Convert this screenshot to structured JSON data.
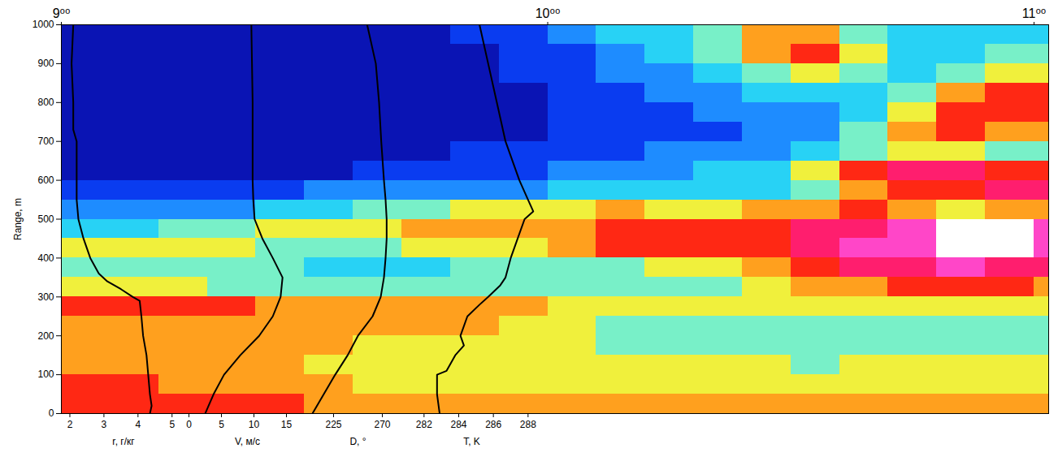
{
  "chart_data": [
    {
      "type": "heatmap",
      "xlim": [
        9,
        11.03
      ],
      "xticks": [
        {
          "value": 9,
          "label": "9⁰⁰"
        },
        {
          "value": 10,
          "label": "10⁰⁰"
        },
        {
          "value": 11,
          "label": "11⁰⁰"
        }
      ],
      "ylabel": "Range, m",
      "ylim": [
        0,
        1000
      ],
      "yticks": [
        0,
        100,
        200,
        300,
        400,
        500,
        600,
        700,
        800,
        900,
        1000
      ],
      "x_edges": [
        9,
        9.1,
        9.2,
        9.3,
        9.4,
        9.5,
        9.6,
        9.7,
        9.8,
        9.9,
        10,
        10.1,
        10.2,
        10.3,
        10.4,
        10.5,
        10.6,
        10.7,
        10.8,
        10.9,
        11,
        11.03
      ],
      "y_edges": [
        0,
        50,
        100,
        150,
        200,
        250,
        300,
        350,
        400,
        450,
        500,
        550,
        600,
        650,
        700,
        750,
        800,
        850,
        900,
        950,
        1000
      ],
      "cells": [
        [
          7,
          7,
          7,
          7,
          7,
          6,
          6,
          6,
          6,
          6,
          6,
          6,
          6,
          6,
          6,
          6,
          6,
          6,
          6,
          6,
          6
        ],
        [
          7,
          7,
          6,
          6,
          6,
          6,
          5,
          5,
          5,
          5,
          5,
          5,
          5,
          5,
          5,
          5,
          5,
          5,
          5,
          5,
          5
        ],
        [
          6,
          6,
          6,
          6,
          6,
          5,
          5,
          5,
          5,
          5,
          5,
          5,
          5,
          5,
          5,
          4,
          5,
          5,
          5,
          5,
          5
        ],
        [
          6,
          6,
          6,
          6,
          6,
          6,
          5,
          5,
          5,
          5,
          5,
          4,
          4,
          4,
          4,
          4,
          4,
          4,
          4,
          4,
          4
        ],
        [
          6,
          6,
          6,
          6,
          6,
          6,
          6,
          6,
          6,
          5,
          5,
          4,
          4,
          4,
          4,
          4,
          4,
          4,
          4,
          4,
          4
        ],
        [
          7,
          7,
          7,
          7,
          6,
          6,
          6,
          6,
          6,
          6,
          5,
          5,
          5,
          5,
          5,
          5,
          5,
          5,
          5,
          5,
          5
        ],
        [
          5,
          5,
          5,
          4,
          4,
          4,
          4,
          4,
          4,
          4,
          4,
          4,
          4,
          4,
          5,
          6,
          6,
          7,
          7,
          7,
          6
        ],
        [
          4,
          4,
          4,
          4,
          4,
          3,
          3,
          3,
          4,
          4,
          4,
          4,
          5,
          5,
          6,
          7,
          8,
          8,
          9,
          8,
          8
        ],
        [
          5,
          5,
          5,
          5,
          4,
          4,
          4,
          5,
          5,
          5,
          6,
          7,
          7,
          7,
          7,
          8,
          9,
          9,
          10,
          10,
          9
        ],
        [
          3,
          3,
          4,
          4,
          5,
          5,
          5,
          6,
          6,
          6,
          6,
          7,
          7,
          7,
          7,
          8,
          8,
          9,
          10,
          10,
          9
        ],
        [
          2,
          2,
          2,
          2,
          3,
          3,
          4,
          4,
          5,
          5,
          5,
          6,
          5,
          5,
          6,
          6,
          7,
          6,
          5,
          6,
          6
        ],
        [
          1,
          1,
          1,
          1,
          1,
          2,
          2,
          2,
          2,
          2,
          3,
          3,
          3,
          3,
          3,
          4,
          6,
          7,
          7,
          8,
          8
        ],
        [
          0,
          0,
          0,
          0,
          0,
          0,
          1,
          1,
          1,
          1,
          2,
          2,
          2,
          3,
          3,
          5,
          7,
          8,
          8,
          7,
          7
        ],
        [
          0,
          0,
          0,
          0,
          0,
          0,
          0,
          0,
          1,
          1,
          1,
          1,
          2,
          2,
          2,
          3,
          4,
          5,
          5,
          4,
          4
        ],
        [
          0,
          0,
          0,
          0,
          0,
          0,
          0,
          0,
          0,
          0,
          1,
          1,
          1,
          1,
          2,
          2,
          4,
          6,
          7,
          6,
          6
        ],
        [
          0,
          0,
          0,
          0,
          0,
          0,
          0,
          0,
          0,
          0,
          1,
          1,
          1,
          2,
          2,
          2,
          3,
          5,
          7,
          7,
          7
        ],
        [
          0,
          0,
          0,
          0,
          0,
          0,
          0,
          0,
          0,
          0,
          1,
          1,
          2,
          2,
          3,
          3,
          3,
          4,
          6,
          7,
          7
        ],
        [
          0,
          0,
          0,
          0,
          0,
          0,
          0,
          0,
          0,
          1,
          1,
          2,
          2,
          3,
          4,
          5,
          4,
          3,
          4,
          5,
          5
        ],
        [
          0,
          0,
          0,
          0,
          0,
          0,
          0,
          0,
          0,
          1,
          1,
          2,
          3,
          4,
          6,
          7,
          5,
          3,
          3,
          4,
          4
        ],
        [
          0,
          0,
          0,
          0,
          0,
          0,
          0,
          0,
          1,
          1,
          2,
          3,
          3,
          4,
          6,
          6,
          4,
          3,
          3,
          3,
          3
        ]
      ]
    },
    {
      "type": "line",
      "xlabel": "r, г/кг",
      "color": "#000000",
      "tick_labels": "x",
      "xlim": [
        1.75,
        5.4
      ],
      "xticks": [
        2,
        3,
        4,
        5
      ],
      "ylim": [
        0,
        1000
      ],
      "x": [
        4.35,
        4.4,
        4.35,
        4.3,
        4.25,
        4.15,
        4.1,
        4.05,
        3.85,
        3.5,
        3.1,
        2.85,
        2.6,
        2.4,
        2.25,
        2.2,
        2.2,
        2.2,
        2.1,
        2.1,
        2.05,
        2.1
      ],
      "y": [
        0,
        20,
        50,
        100,
        150,
        200,
        250,
        290,
        300,
        320,
        340,
        360,
        400,
        450,
        500,
        550,
        600,
        700,
        730,
        800,
        900,
        1000
      ]
    },
    {
      "type": "line",
      "xlabel": "V, м/с",
      "color": "#000000",
      "tick_labels": "x",
      "xlim": [
        -0.5,
        18.5
      ],
      "xticks": [
        0,
        5,
        10,
        15
      ],
      "ylim": [
        0,
        1000
      ],
      "x": [
        2.5,
        3.8,
        5.4,
        7.9,
        10.8,
        12.9,
        14.1,
        14.4,
        12.9,
        11.3,
        10.1,
        9.9,
        9.8,
        9.8,
        9.8,
        9.7,
        9.6
      ],
      "y": [
        0,
        50,
        100,
        150,
        200,
        250,
        300,
        350,
        400,
        450,
        500,
        550,
        600,
        700,
        800,
        900,
        1000
      ]
    },
    {
      "type": "line",
      "xlabel": "D, °",
      "color": "#000000",
      "tick_labels": "x",
      "xlim": [
        202.5,
        292.5
      ],
      "xticks": [
        225,
        270
      ],
      "ylim": [
        0,
        1000
      ],
      "x": [
        205.5,
        216,
        226.5,
        238,
        247.5,
        261,
        268.5,
        271.5,
        273,
        274,
        274,
        273,
        271.5,
        269,
        267,
        264,
        256
      ],
      "y": [
        0,
        50,
        100,
        150,
        200,
        250,
        300,
        350,
        400,
        450,
        500,
        550,
        600,
        700,
        800,
        900,
        1000
      ]
    },
    {
      "type": "line",
      "xlabel": "T, K",
      "color": "#000000",
      "tick_labels": "x",
      "xlim": [
        281,
        288.5
      ],
      "xticks": [
        282,
        284,
        286,
        288
      ],
      "ylim": [
        0,
        1000
      ],
      "x": [
        282.9,
        282.75,
        282.75,
        283.3,
        283.8,
        284.3,
        284.1,
        284.5,
        285.2,
        285.7,
        286.4,
        286.7,
        287,
        287.4,
        287.8,
        288.3,
        288,
        287.5,
        287.1,
        286.7,
        286.2,
        285.7,
        285.2
      ],
      "y": [
        0,
        50,
        100,
        110,
        150,
        175,
        200,
        250,
        280,
        300,
        330,
        350,
        400,
        450,
        500,
        520,
        550,
        600,
        650,
        700,
        800,
        900,
        1000
      ]
    }
  ]
}
